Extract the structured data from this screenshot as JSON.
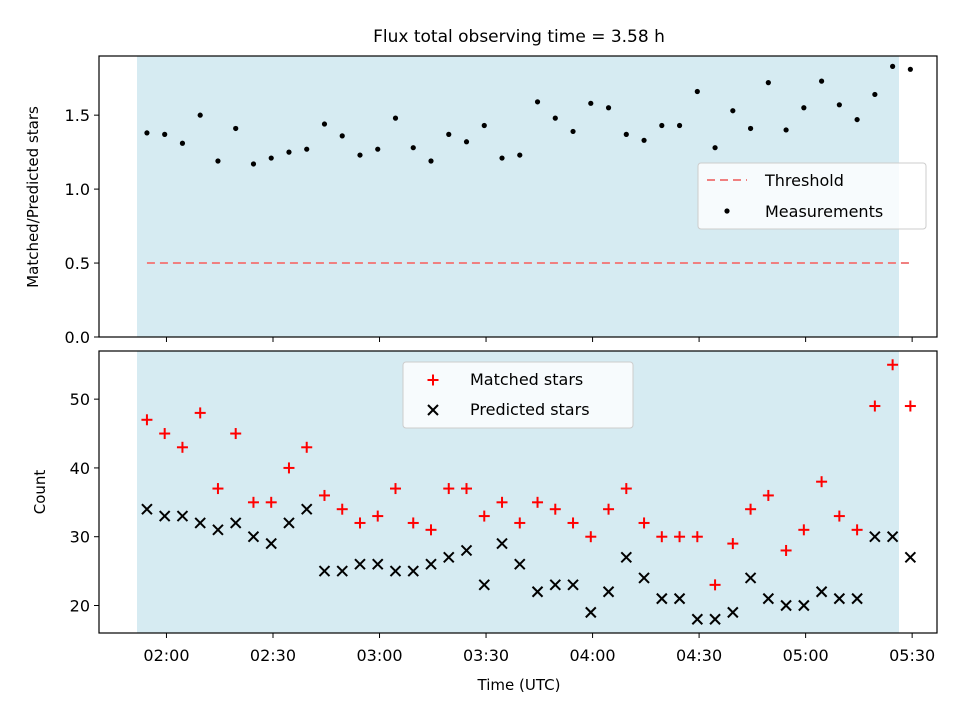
{
  "title": "Flux total observing time = 3.58 h",
  "colors": {
    "observing_span": "#add8e6",
    "threshold": "#f08080",
    "measurements": "#000000",
    "matched": "#ff0000",
    "predicted": "#000000"
  },
  "chart_data": [
    {
      "type": "scatter",
      "ylabel": "Matched/Predicted stars",
      "ylim": [
        0,
        1.9
      ],
      "yticks": [
        0.0,
        0.5,
        1.0,
        1.5
      ],
      "ytick_labels": [
        "0.0",
        "0.5",
        "1.0",
        "1.5"
      ],
      "legend": {
        "placement": "center-right",
        "entries": [
          "Threshold",
          "Measurements"
        ]
      },
      "threshold": {
        "name": "Threshold",
        "value": 0.5,
        "style": "dashed"
      },
      "series": [
        {
          "name": "Measurements",
          "marker": "dot",
          "values": [
            1.38,
            1.37,
            1.31,
            1.5,
            1.19,
            1.41,
            1.17,
            1.21,
            1.25,
            1.27,
            1.44,
            1.36,
            1.23,
            1.27,
            1.48,
            1.28,
            1.19,
            1.37,
            1.32,
            1.43,
            1.21,
            1.23,
            1.59,
            1.48,
            1.39,
            1.58,
            1.55,
            1.37,
            1.33,
            1.43,
            1.43,
            1.66,
            1.28,
            1.53,
            1.41,
            1.72,
            1.4,
            1.55,
            1.73,
            1.57,
            1.47,
            1.64,
            1.83,
            1.81
          ]
        }
      ]
    },
    {
      "type": "scatter",
      "xlabel": "Time (UTC)",
      "ylabel": "Count",
      "ylim": [
        16,
        57
      ],
      "yticks": [
        20,
        30,
        40,
        50
      ],
      "ytick_labels": [
        "20",
        "30",
        "40",
        "50"
      ],
      "legend": {
        "placement": "top-center",
        "entries": [
          "Matched stars",
          "Predicted stars"
        ]
      },
      "series": [
        {
          "name": "Matched stars",
          "marker": "plus",
          "values": [
            47,
            45,
            43,
            48,
            37,
            45,
            35,
            35,
            40,
            43,
            36,
            34,
            32,
            33,
            37,
            32,
            31,
            37,
            37,
            33,
            35,
            32,
            35,
            34,
            32,
            30,
            34,
            37,
            32,
            30,
            30,
            30,
            23,
            29,
            34,
            36,
            28,
            31,
            38,
            33,
            31,
            49,
            55,
            49
          ]
        },
        {
          "name": "Predicted stars",
          "marker": "x",
          "values": [
            34,
            33,
            33,
            32,
            31,
            32,
            30,
            29,
            32,
            34,
            25,
            25,
            26,
            26,
            25,
            25,
            26,
            27,
            28,
            23,
            29,
            26,
            22,
            23,
            23,
            19,
            22,
            27,
            24,
            21,
            21,
            18,
            18,
            19,
            24,
            21,
            20,
            20,
            22,
            21,
            21,
            30,
            30,
            27
          ]
        }
      ]
    }
  ],
  "time": {
    "x_minutes": [
      114.5,
      119.5,
      124.5,
      129.5,
      134.5,
      139.5,
      144.5,
      149.5,
      154.5,
      159.5,
      164.5,
      169.5,
      174.5,
      179.5,
      184.5,
      189.5,
      194.5,
      199.5,
      204.5,
      209.5,
      214.5,
      219.5,
      224.5,
      229.5,
      234.5,
      239.5,
      244.5,
      249.5,
      254.5,
      259.5,
      264.5,
      269.5,
      274.5,
      279.5,
      284.5,
      289.5,
      294.5,
      299.5,
      304.5,
      309.5,
      314.5,
      319.5,
      324.5,
      329.5
    ],
    "xlim_minutes": [
      101,
      337
    ],
    "span_minutes": [
      112,
      327
    ],
    "xtick_minutes": [
      120,
      150,
      180,
      210,
      240,
      270,
      300,
      330
    ],
    "xtick_labels": [
      "02:00",
      "02:30",
      "03:00",
      "03:30",
      "04:00",
      "04:30",
      "05:00",
      "05:30"
    ]
  }
}
